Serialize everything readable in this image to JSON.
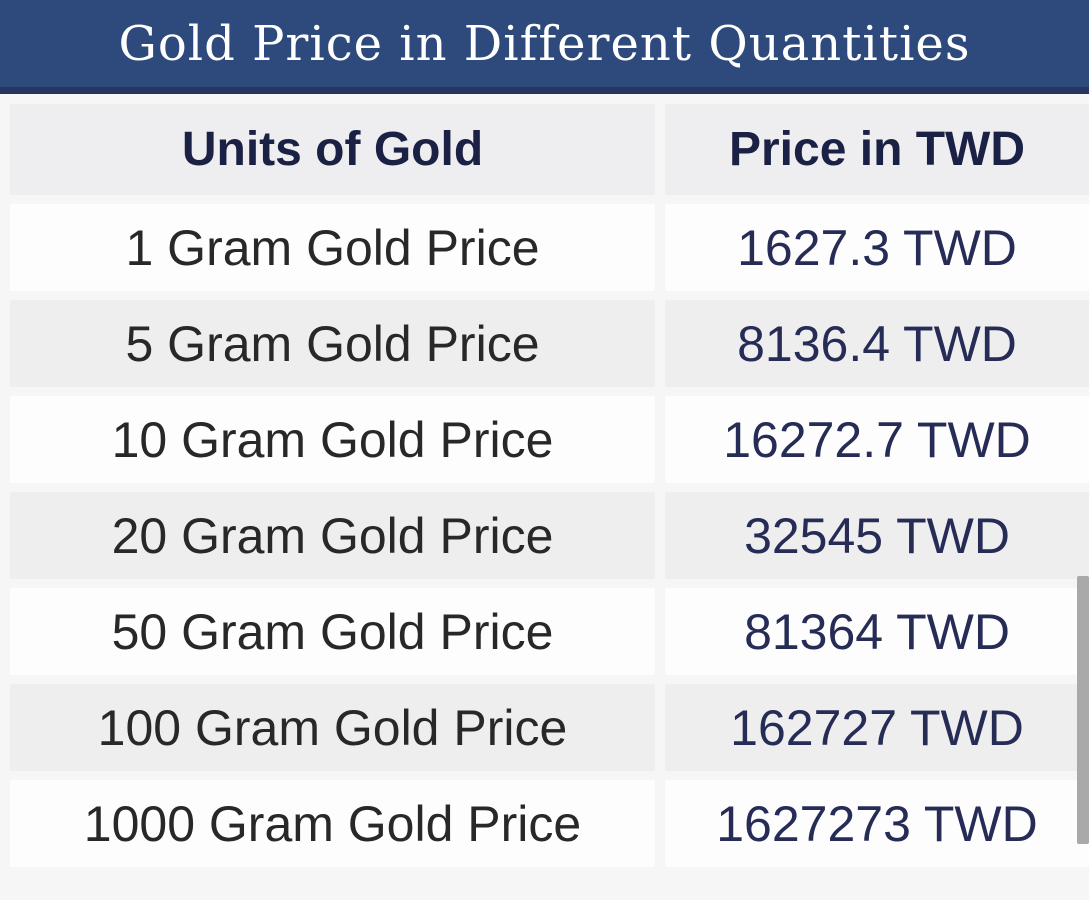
{
  "header": {
    "title": "Gold Price in Different Quantities"
  },
  "table": {
    "columns": [
      {
        "label": "Units of Gold"
      },
      {
        "label": "Price in TWD"
      }
    ],
    "rows": [
      {
        "unit": "1 Gram Gold Price",
        "price": "1627.3 TWD"
      },
      {
        "unit": "5 Gram Gold Price",
        "price": "8136.4 TWD"
      },
      {
        "unit": "10 Gram Gold Price",
        "price": "16272.7 TWD"
      },
      {
        "unit": "20 Gram Gold Price",
        "price": "32545 TWD"
      },
      {
        "unit": "50 Gram Gold Price",
        "price": "81364 TWD"
      },
      {
        "unit": "100 Gram Gold Price",
        "price": "162727 TWD"
      },
      {
        "unit": "1000 Gram Gold Price",
        "price": "1627273 TWD"
      }
    ]
  },
  "chart_data": {
    "type": "table",
    "title": "Gold Price in Different Quantities",
    "columns": [
      "Units of Gold",
      "Price in TWD"
    ],
    "rows": [
      [
        "1 Gram Gold Price",
        "1627.3 TWD"
      ],
      [
        "5 Gram Gold Price",
        "8136.4 TWD"
      ],
      [
        "10 Gram Gold Price",
        "16272.7 TWD"
      ],
      [
        "20 Gram Gold Price",
        "32545 TWD"
      ],
      [
        "50 Gram Gold Price",
        "81364 TWD"
      ],
      [
        "100 Gram Gold Price",
        "162727 TWD"
      ],
      [
        "1000 Gram Gold Price",
        "1627273 TWD"
      ]
    ],
    "units_grams": [
      1,
      5,
      10,
      20,
      50,
      100,
      1000
    ],
    "prices_twd": [
      1627.3,
      8136.4,
      16272.7,
      32545,
      81364,
      162727,
      1627273
    ],
    "currency": "TWD"
  },
  "colors": {
    "header_bg": "#2e4a7c",
    "header_border": "#27365f",
    "header_text": "#ffffff",
    "column_header_bg": "#eeedef",
    "column_header_text": "#1b2145",
    "row_white": "#fdfdfd",
    "row_gray": "#efeeef",
    "unit_text": "#282828",
    "price_text": "#272c56",
    "page_bg": "#f7f6f7",
    "scrollbar": "#a9a9a9"
  }
}
